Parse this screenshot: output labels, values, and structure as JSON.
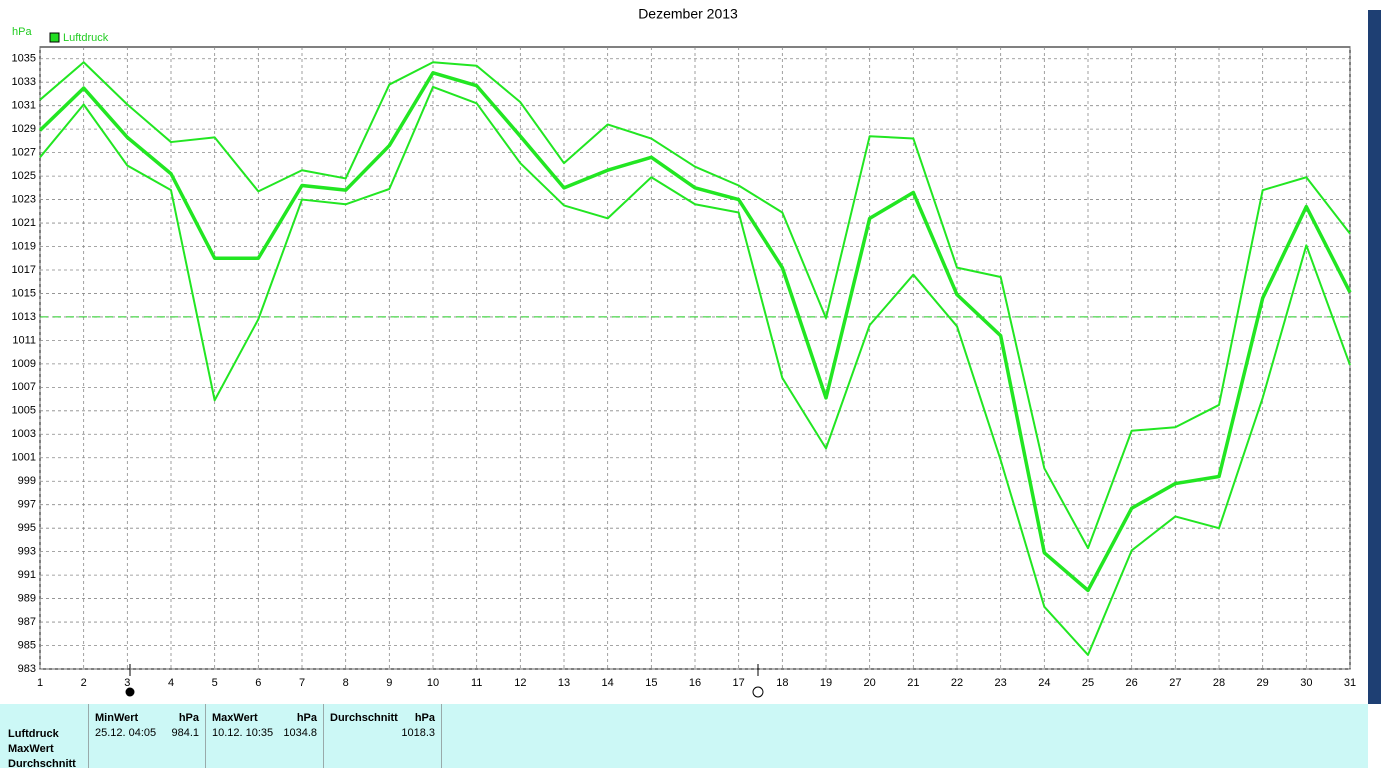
{
  "chart_data": {
    "type": "line",
    "title": "Dezember 2013",
    "y_unit": "hPa",
    "legend": "Luftdruck",
    "legend_color": "#22dd22",
    "x": [
      1,
      2,
      3,
      4,
      5,
      6,
      7,
      8,
      9,
      10,
      11,
      12,
      13,
      14,
      15,
      16,
      17,
      18,
      19,
      20,
      21,
      22,
      23,
      24,
      25,
      26,
      27,
      28,
      29,
      30,
      31
    ],
    "xlim": [
      1,
      31
    ],
    "xticks": [
      1,
      2,
      3,
      4,
      5,
      6,
      7,
      8,
      9,
      10,
      11,
      12,
      13,
      14,
      15,
      16,
      17,
      18,
      19,
      20,
      21,
      22,
      23,
      24,
      25,
      26,
      27,
      28,
      29,
      30,
      31
    ],
    "ylim": [
      983,
      1036
    ],
    "yticks": [
      983,
      985,
      987,
      989,
      991,
      993,
      995,
      997,
      999,
      1001,
      1003,
      1005,
      1007,
      1009,
      1011,
      1013,
      1015,
      1017,
      1019,
      1021,
      1023,
      1025,
      1027,
      1029,
      1031,
      1033,
      1035
    ],
    "grid": true,
    "reference_line": 1013,
    "series": [
      {
        "color": "#22e622",
        "width": 2,
        "values": [
          1031.5,
          1034.7,
          1031.1,
          1027.9,
          1028.3,
          1023.7,
          1025.5,
          1024.8,
          1032.8,
          1034.7,
          1034.4,
          1031.3,
          1026.1,
          1029.4,
          1028.2,
          1025.8,
          1024.2,
          1021.9,
          1012.9,
          1028.4,
          1028.2,
          1017.2,
          1016.4,
          1000.1,
          993.3,
          1003.3,
          1003.6,
          1005.5,
          1023.8,
          1024.9,
          1020.1
        ]
      },
      {
        "color": "#22e622",
        "width": 3.5,
        "values": [
          1028.9,
          1032.5,
          1028.3,
          1025.2,
          1018.0,
          1018.0,
          1024.2,
          1023.8,
          1027.6,
          1033.8,
          1032.7,
          1028.4,
          1024.0,
          1025.5,
          1026.6,
          1024.0,
          1023.0,
          1017.2,
          1006.1,
          1021.4,
          1023.6,
          1014.9,
          1011.4,
          992.9,
          989.7,
          996.7,
          998.8,
          999.4,
          1014.6,
          1022.4,
          1015.1
        ]
      },
      {
        "color": "#22e622",
        "width": 2,
        "values": [
          1026.6,
          1031.1,
          1025.9,
          1023.8,
          1005.9,
          1012.8,
          1023.0,
          1022.6,
          1023.9,
          1032.6,
          1031.2,
          1026.1,
          1022.5,
          1021.4,
          1024.9,
          1022.6,
          1021.9,
          1007.8,
          1001.8,
          1012.3,
          1016.6,
          1012.2,
          1000.8,
          988.3,
          984.2,
          993.1,
          996.0,
          995.0,
          1006.1,
          1019.1,
          1008.9
        ]
      }
    ]
  },
  "table": {
    "row_labels": [
      "Luftdruck",
      "MaxWert",
      "Durchschnitt"
    ],
    "columns": [
      {
        "header": "MinWert",
        "unit": "hPa",
        "when": "25.12.  04:05",
        "value": "984.1"
      },
      {
        "header": "MaxWert",
        "unit": "hPa",
        "when": "10.12.  10:35",
        "value": "1034.8"
      },
      {
        "header": "Durchschnitt",
        "unit": "hPa",
        "when": "",
        "value": "1018.3"
      }
    ]
  }
}
